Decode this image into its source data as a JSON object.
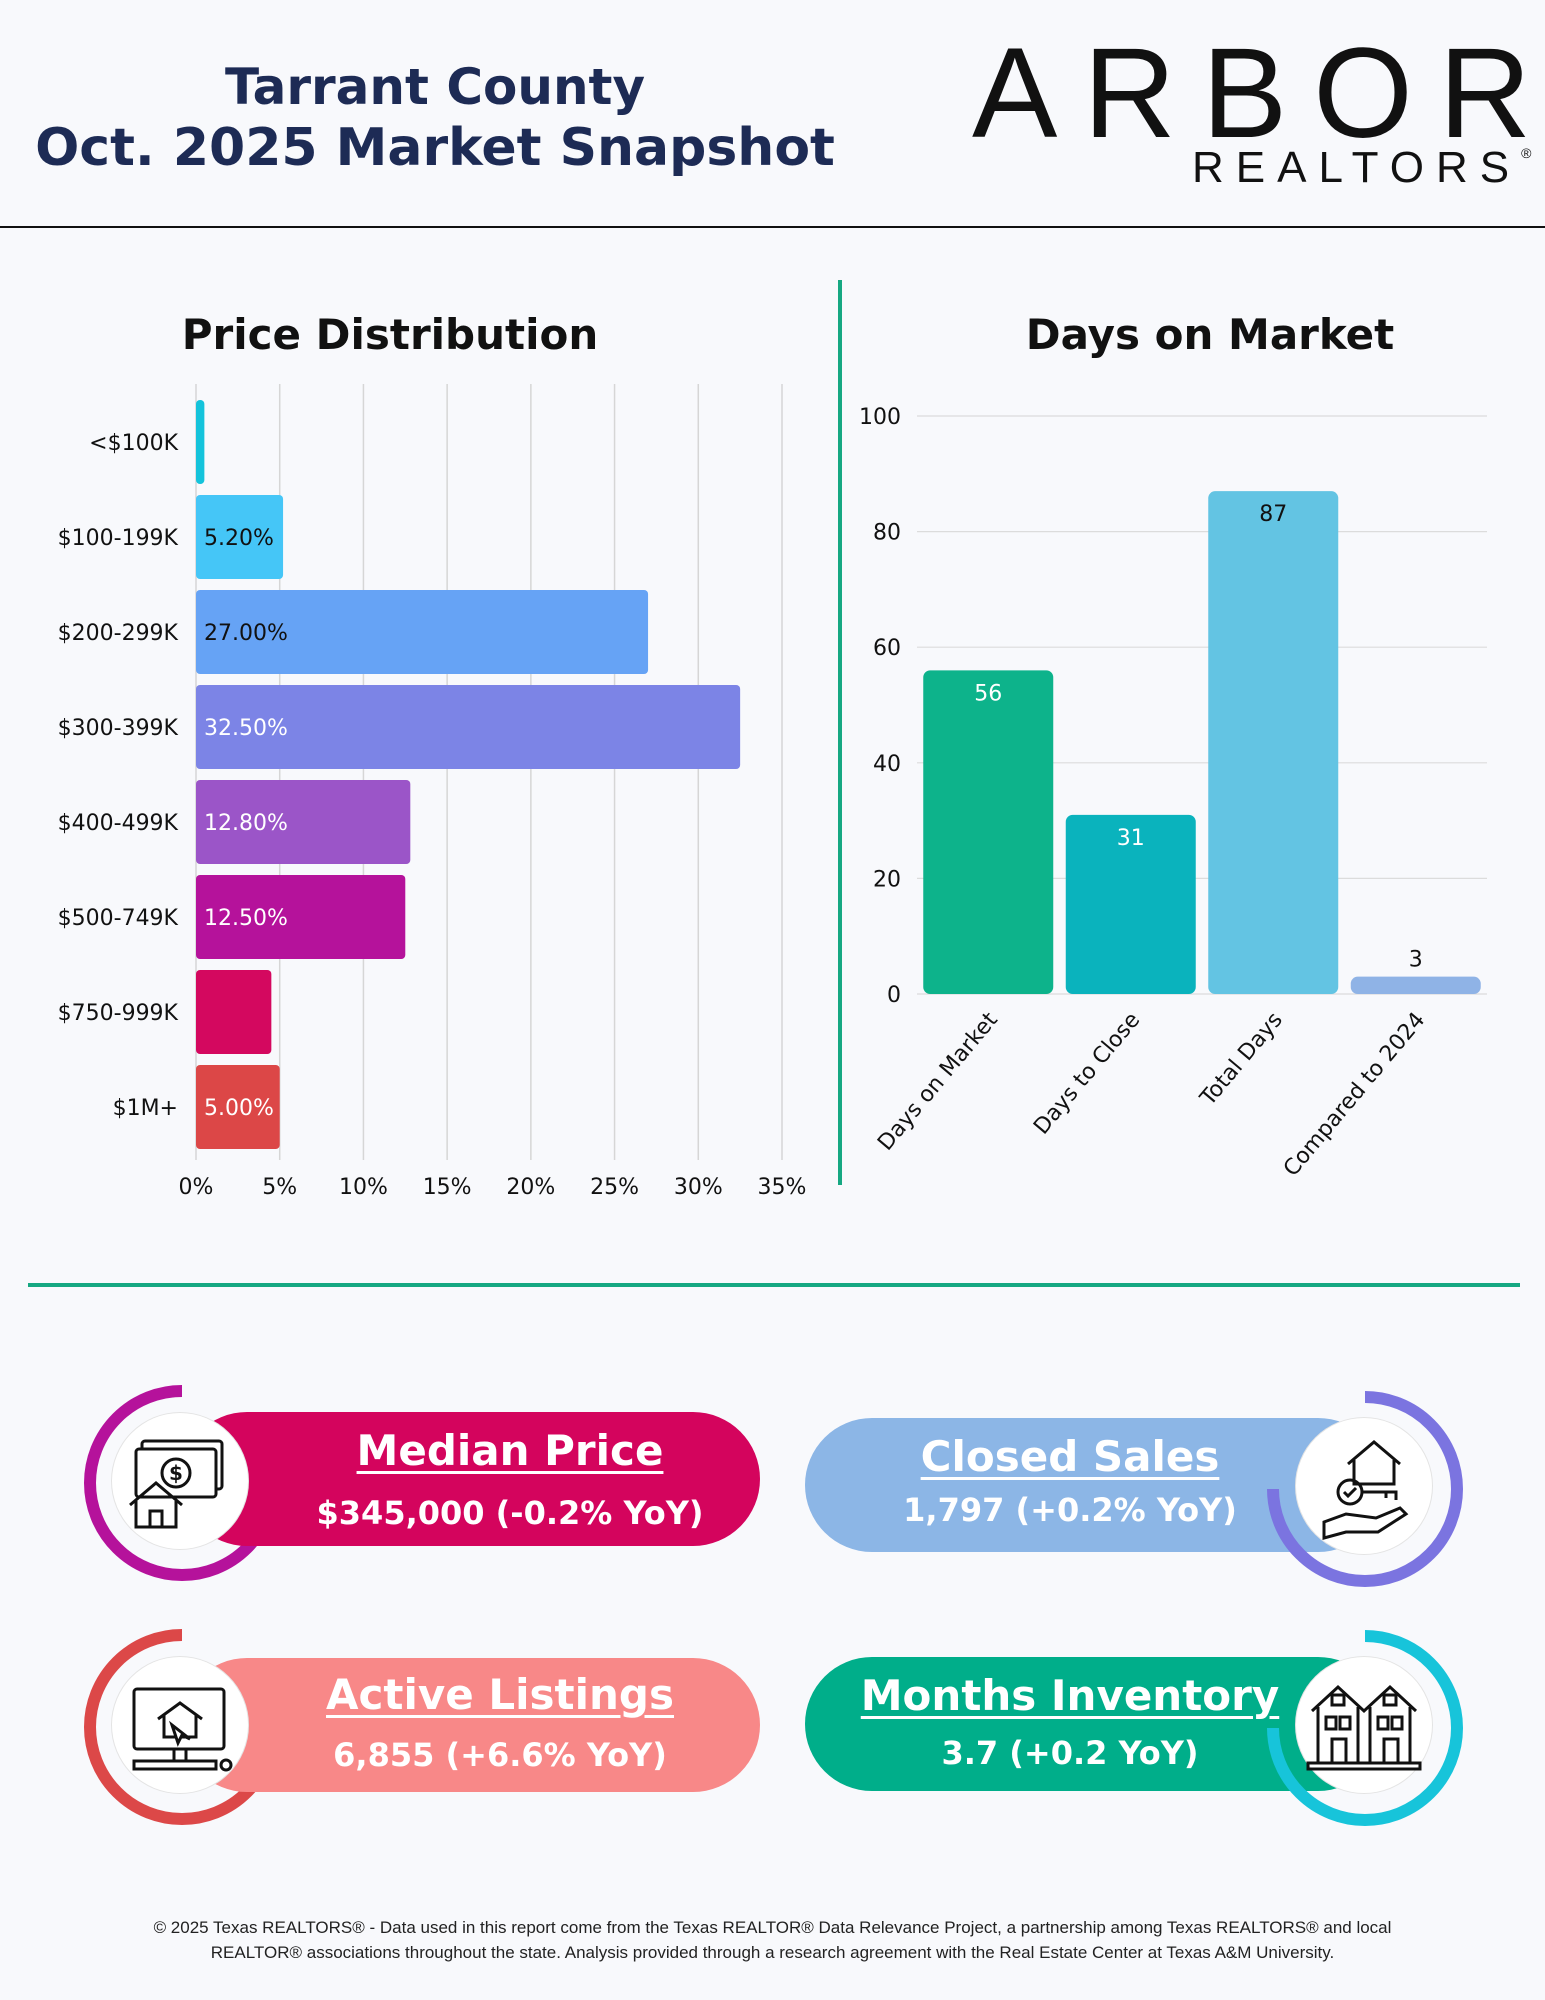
{
  "header": {
    "title_line1": "Tarrant County",
    "title_line2": "Oct. 2025 Market Snapshot",
    "logo_word": "ARBOR",
    "logo_sub": "REALTORS",
    "logo_reg": "®"
  },
  "colors": {
    "navy": "#1d2b55",
    "green": "#16a882",
    "divider": "#111111"
  },
  "chart_data": [
    {
      "type": "bar",
      "orientation": "horizontal",
      "title": "Price Distribution",
      "categories": [
        "<$100K",
        "$100-199K",
        "$200-299K",
        "$300-399K",
        "$400-499K",
        "$500-749K",
        "$750-999K",
        "$1M+"
      ],
      "values": [
        0.5,
        5.2,
        27.0,
        32.5,
        12.8,
        12.5,
        4.5,
        5.0
      ],
      "data_labels": [
        "",
        "5.20%",
        "27.00%",
        "32.50%",
        "12.80%",
        "12.50%",
        "",
        "5.00%"
      ],
      "colors": [
        "#14c3db",
        "#45c6f7",
        "#66a3f5",
        "#7c84e6",
        "#9b55c8",
        "#b5129b",
        "#d4085f",
        "#dc4747"
      ],
      "label_colors": [
        "#111111",
        "#111111",
        "#111111",
        "#ffffff",
        "#ffffff",
        "#ffffff",
        "#ffffff",
        "#ffffff"
      ],
      "xlim": [
        0,
        35
      ],
      "x_ticks": [
        "0%",
        "5%",
        "10%",
        "15%",
        "20%",
        "25%",
        "30%",
        "35%"
      ],
      "grid": "vertical"
    },
    {
      "type": "bar",
      "title": "Days on Market",
      "categories": [
        "Days on Market",
        "Days to Close",
        "Total Days",
        "Compared to 2024"
      ],
      "values": [
        56,
        31,
        87,
        3
      ],
      "data_labels": [
        "56",
        "31",
        "87",
        "3"
      ],
      "colors": [
        "#0db38b",
        "#0ab3bd",
        "#63c4e3",
        "#8fb3e6"
      ],
      "label_colors": [
        "#ffffff",
        "#ffffff",
        "#111111",
        "#111111"
      ],
      "ylim": [
        0,
        100
      ],
      "y_ticks": [
        "0",
        "20",
        "40",
        "60",
        "80",
        "100"
      ],
      "grid": "horizontal"
    }
  ],
  "stats": [
    {
      "title": "Median Price",
      "value": "$345,000 (-0.2% YoY)",
      "color": "#d4045d",
      "ring": "#b5129b",
      "icon": "money-house-icon"
    },
    {
      "title": "Closed Sales",
      "value": "1,797 (+0.2% YoY)",
      "color": "#8cb6e6",
      "ring": "#7b74e0",
      "icon": "key-hand-house-icon"
    },
    {
      "title": "Active Listings",
      "value": "6,855 (+6.6% YoY)",
      "color": "#f88888",
      "ring": "#dc4848",
      "icon": "computer-house-icon"
    },
    {
      "title": "Months Inventory",
      "value": "3.7 (+0.2 YoY)",
      "color": "#00ae8a",
      "ring": "#17c4da",
      "icon": "townhouses-icon"
    }
  ],
  "footer": {
    "line1": "© 2025 Texas REALTORS® - Data used in this report come from the Texas REALTOR® Data Relevance Project, a partnership among Texas REALTORS® and local",
    "line2": "REALTOR® associations throughout the state. Analysis provided through a research agreement with the Real Estate Center at Texas A&M University."
  }
}
